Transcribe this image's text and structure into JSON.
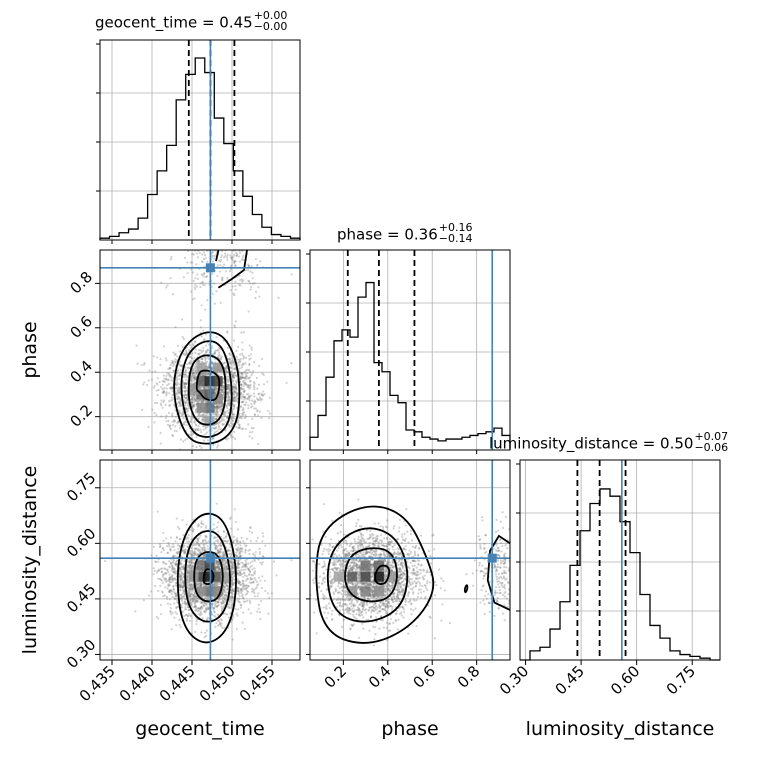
{
  "chart_data": {
    "type": "corner",
    "parameters": [
      {
        "name": "geocent_time",
        "label": "geocent_time",
        "range": [
          0.4335,
          0.4585
        ],
        "ticks": [
          0.435,
          0.44,
          0.445,
          0.45,
          0.455
        ],
        "tick_labels": [
          "0.435",
          "0.440",
          "0.445",
          "0.450",
          "0.455"
        ],
        "truth": 0.4473,
        "quantiles": [
          0.4446,
          0.4473,
          0.4503
        ],
        "title": {
          "main": "geocent_time = 0.45",
          "upper": "+0.00",
          "lower": "−0.00"
        },
        "hist": [
          0.01,
          0.02,
          0.04,
          0.06,
          0.12,
          0.25,
          0.38,
          0.52,
          0.77,
          0.91,
          1.0,
          0.92,
          0.67,
          0.53,
          0.38,
          0.24,
          0.14,
          0.07,
          0.03,
          0.02,
          0.01
        ]
      },
      {
        "name": "phase",
        "label": "phase",
        "range": [
          0.05,
          0.95
        ],
        "ticks": [
          0.2,
          0.4,
          0.6,
          0.8
        ],
        "tick_labels": [
          "0.2",
          "0.4",
          "0.6",
          "0.8"
        ],
        "truth": 0.87,
        "quantiles": [
          0.22,
          0.36,
          0.52
        ],
        "title": {
          "main": "phase = 0.36",
          "upper": "+0.16",
          "lower": "−0.14"
        },
        "hist": [
          0.07,
          0.19,
          0.4,
          0.6,
          0.66,
          0.62,
          0.84,
          0.92,
          0.48,
          0.43,
          0.3,
          0.26,
          0.11,
          0.1,
          0.07,
          0.06,
          0.05,
          0.06,
          0.06,
          0.07,
          0.08,
          0.09,
          0.1,
          0.12,
          0.08
        ]
      },
      {
        "name": "luminosity_distance",
        "label": "luminosity_distance",
        "range": [
          0.285,
          0.825
        ],
        "ticks": [
          0.3,
          0.45,
          0.6,
          0.75
        ],
        "tick_labels": [
          "0.30",
          "0.45",
          "0.60",
          "0.75"
        ],
        "truth": 0.56,
        "quantiles": [
          0.44,
          0.5,
          0.57
        ],
        "title": {
          "main": "luminosity_distance = 0.50",
          "upper": "+0.07",
          "lower": "−0.06"
        },
        "hist": [
          0.0,
          0.05,
          0.07,
          0.17,
          0.32,
          0.52,
          0.71,
          0.86,
          0.94,
          0.9,
          0.76,
          0.59,
          0.36,
          0.19,
          0.12,
          0.05,
          0.03,
          0.02,
          0.01,
          0.0
        ]
      }
    ],
    "panels_2d": [
      {
        "x": "geocent_time",
        "y": "phase"
      },
      {
        "x": "geocent_time",
        "y": "luminosity_distance"
      },
      {
        "x": "phase",
        "y": "luminosity_distance"
      }
    ],
    "truth_color": "#4682b4",
    "grid": true
  }
}
